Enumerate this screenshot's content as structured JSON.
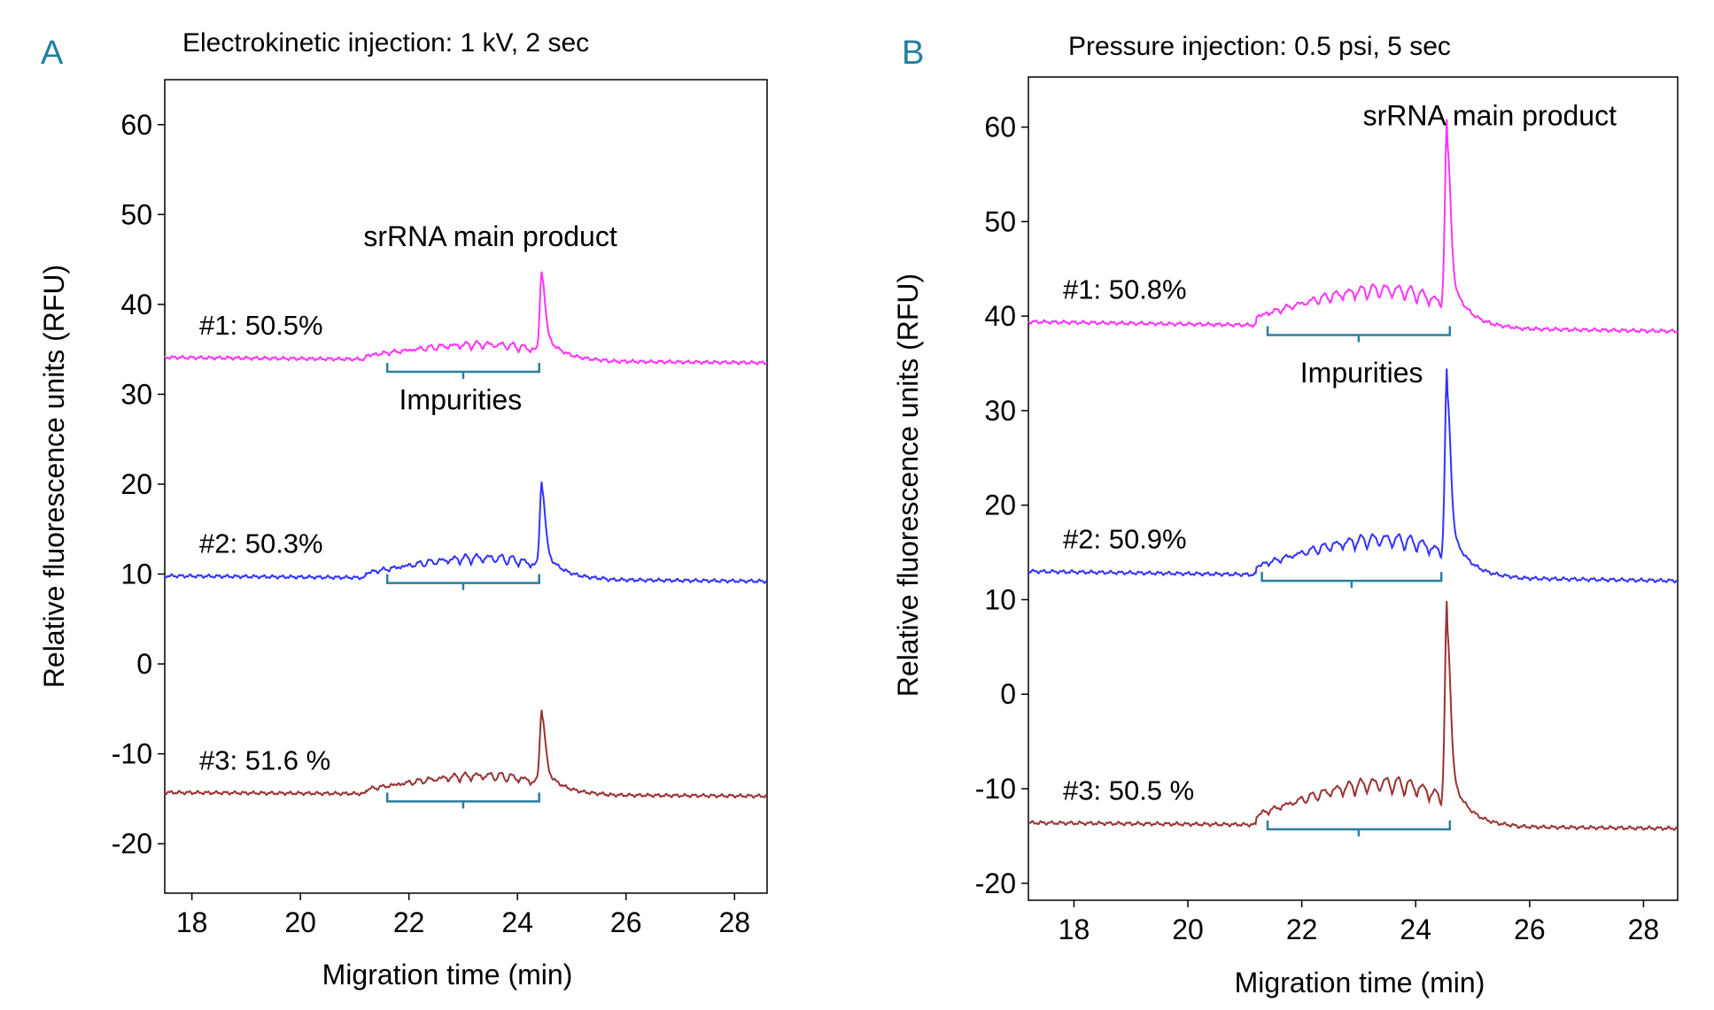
{
  "chart_data": [
    {
      "panel_letter": "A",
      "type": "line",
      "title": "Electrokinetic injection: 1 kV, 2 sec",
      "xlabel": "Migration time (min)",
      "ylabel": "Relative fluorescence units (RFU)",
      "xlim": [
        17.5,
        28.6
      ],
      "ylim": [
        -25.5,
        65
      ],
      "xticks": [
        18,
        20,
        22,
        24,
        26,
        28
      ],
      "yticks": [
        -20,
        -10,
        0,
        10,
        20,
        30,
        40,
        50,
        60
      ],
      "grid": false,
      "legend": "none",
      "series": [
        {
          "name": "#1: 50.5%",
          "color": "#ff33ff",
          "baseline_start": 34.1,
          "baseline_end": 33.5,
          "peak_x": 24.45,
          "peak_y": 43.0,
          "impurity_rise": 1.5,
          "impurity_wiggle": 0.7
        },
        {
          "name": "#2: 50.3%",
          "color": "#3333ff",
          "baseline_start": 9.8,
          "baseline_end": 9.2,
          "peak_x": 24.45,
          "peak_y": 19.5,
          "impurity_rise": 2.0,
          "impurity_wiggle": 0.9
        },
        {
          "name": "#3: 51.6 %",
          "color": "#993333",
          "baseline_start": -14.3,
          "baseline_end": -14.7,
          "peak_x": 24.45,
          "peak_y": -5.7,
          "impurity_rise": 1.8,
          "impurity_wiggle": 0.8
        }
      ],
      "annotations": [
        {
          "text": "srRNA main product",
          "x": 23.5,
          "y": 46.5
        },
        {
          "text": "Impurities",
          "x": 22.95,
          "y": 28.3
        }
      ],
      "brackets": [
        {
          "x_start": 21.6,
          "x_end": 24.4,
          "y": 32.5
        },
        {
          "x_start": 21.6,
          "x_end": 24.4,
          "y": 9.0
        },
        {
          "x_start": 21.6,
          "x_end": 24.4,
          "y": -15.3
        }
      ]
    },
    {
      "panel_letter": "B",
      "type": "line",
      "title": "Pressure injection: 0.5 psi, 5 sec",
      "xlabel": "Migration time (min)",
      "ylabel": "Relative fluorescence units (RFU)",
      "xlim": [
        17.2,
        28.6
      ],
      "ylim": [
        -21.8,
        65.3
      ],
      "xticks": [
        18,
        20,
        22,
        24,
        26,
        28
      ],
      "yticks": [
        -20,
        -10,
        0,
        10,
        20,
        30,
        40,
        50,
        60
      ],
      "grid": false,
      "legend": "none",
      "series": [
        {
          "name": "#1: 50.8%",
          "color": "#ff33ff",
          "baseline_start": 39.4,
          "baseline_end": 38.4,
          "peak_x": 24.55,
          "peak_y": 58.5,
          "impurity_rise": 3.5,
          "impurity_wiggle": 1.4
        },
        {
          "name": "#2: 50.9%",
          "color": "#3333ff",
          "baseline_start": 13.0,
          "baseline_end": 12.0,
          "peak_x": 24.55,
          "peak_y": 32.0,
          "impurity_rise": 3.5,
          "impurity_wiggle": 1.4
        },
        {
          "name": "#3: 50.5 %",
          "color": "#993333",
          "baseline_start": -13.6,
          "baseline_end": -14.2,
          "peak_x": 24.55,
          "peak_y": 7.0,
          "impurity_rise": 4.0,
          "impurity_wiggle": 1.6
        }
      ],
      "annotations": [
        {
          "text": "srRNA main product",
          "x": 25.3,
          "y": 60.2
        },
        {
          "text": "Impurities",
          "x": 23.05,
          "y": 33.0
        }
      ],
      "brackets": [
        {
          "x_start": 21.4,
          "x_end": 24.6,
          "y": 38.0
        },
        {
          "x_start": 21.3,
          "x_end": 24.45,
          "y": 12.0
        },
        {
          "x_start": 21.4,
          "x_end": 24.6,
          "y": -14.3
        }
      ]
    }
  ],
  "colors": {
    "panel_letter": "#1f7fa0",
    "bracket": "#2a7f9e",
    "axes": "#000000"
  }
}
